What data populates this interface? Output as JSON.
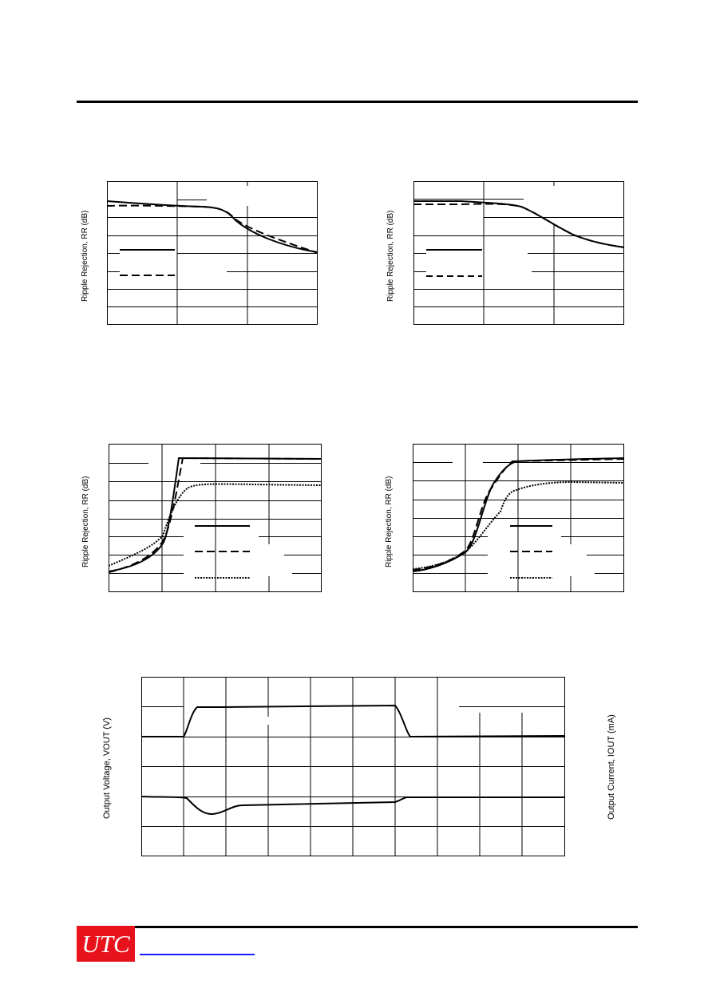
{
  "header": {},
  "charts": {
    "c1": {
      "ylabel": "Ripple Rejection, RR (dB)"
    },
    "c2": {
      "ylabel": "Ripple Rejection, RR (dB)"
    },
    "c3": {
      "ylabel": "Ripple Rejection, RR (dB)"
    },
    "c4": {
      "ylabel": "Ripple Rejection, RR (dB)"
    },
    "c5": {
      "ylabel_left": "Output Voltage, VOUT (V)",
      "ylabel_right": "Output Current, IOUT (mA)"
    }
  },
  "footer": {
    "logo_text": "UTC",
    "logo_color": "#e8121c",
    "link_color": "#1a1aff"
  }
}
